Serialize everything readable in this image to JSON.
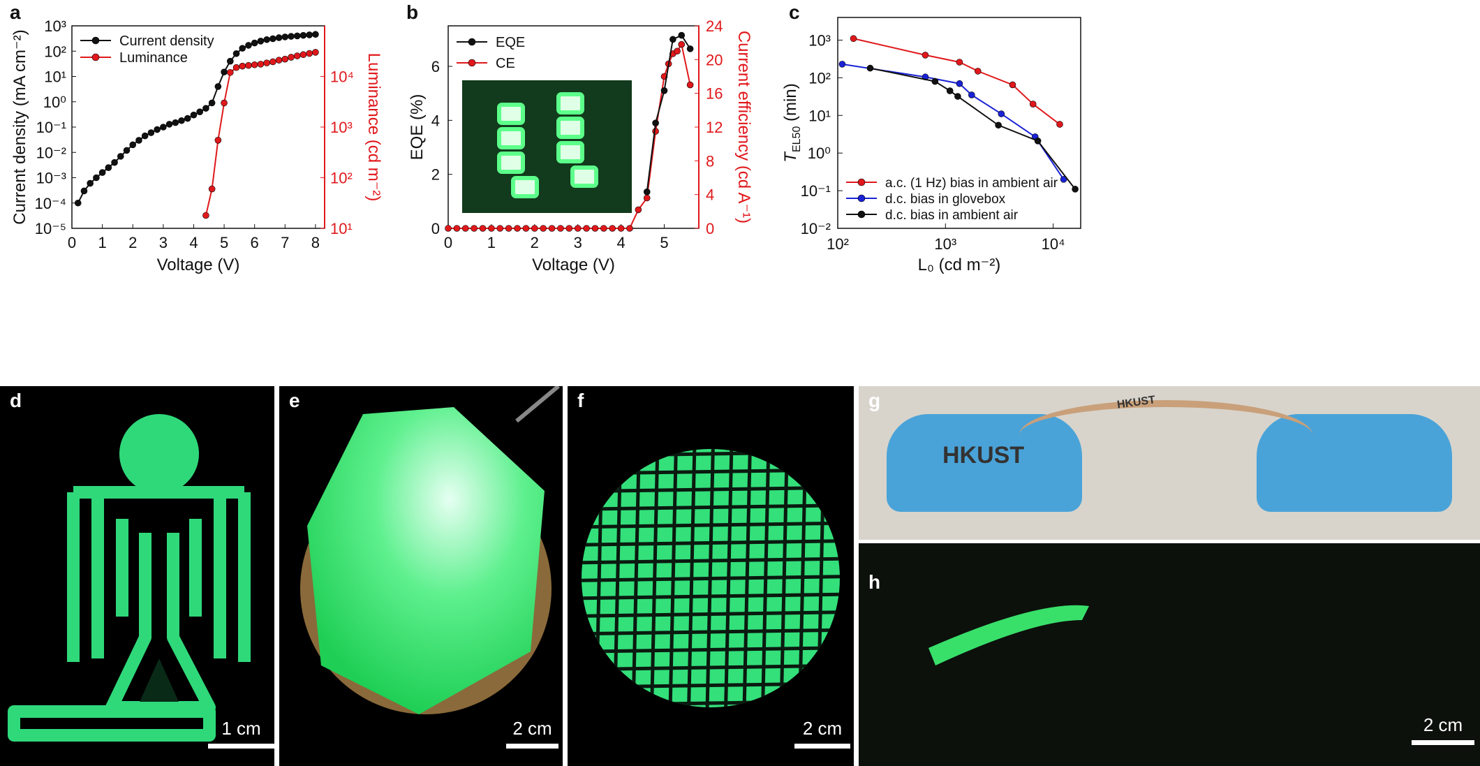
{
  "panel_labels": {
    "a": "a",
    "b": "b",
    "c": "c",
    "d": "d",
    "e": "e",
    "f": "f",
    "g": "g",
    "h": "h"
  },
  "colors": {
    "black": "#111111",
    "red": "#e0181b",
    "blue": "#1a22d6",
    "green": "#2fe07a"
  },
  "chart_data": [
    {
      "id": "a",
      "type": "line",
      "xlabel": "Voltage (V)",
      "ylabel": "Current density (mA cm⁻²)",
      "y2label": "Luminance (cd m⁻²)",
      "xlim": [
        0,
        8.3
      ],
      "ylim": [
        1e-05,
        1000.0
      ],
      "y2lim": [
        10.0,
        100000.0
      ],
      "yscale": "log",
      "y2scale": "log",
      "xticks": [
        "0",
        "1",
        "2",
        "3",
        "4",
        "5",
        "6",
        "7",
        "8"
      ],
      "yticks": [
        "10⁻⁵",
        "10⁻⁴",
        "10⁻³",
        "10⁻²",
        "10⁻¹",
        "10⁰",
        "10¹",
        "10²",
        "10³"
      ],
      "y2ticks": [
        "10¹",
        "10²",
        "10³",
        "10⁴"
      ],
      "legend_position": "top-left",
      "series": [
        {
          "name": "Current density",
          "axis": "left",
          "color": "#111111",
          "x": [
            0.2,
            0.4,
            0.6,
            0.8,
            1.0,
            1.2,
            1.4,
            1.6,
            1.8,
            2.0,
            2.2,
            2.4,
            2.6,
            2.8,
            3.0,
            3.2,
            3.4,
            3.6,
            3.8,
            4.0,
            4.2,
            4.4,
            4.6,
            4.8,
            5.0,
            5.2,
            5.4,
            5.6,
            5.8,
            6.0,
            6.2,
            6.4,
            6.6,
            6.8,
            7.0,
            7.2,
            7.4,
            7.6,
            7.8,
            8.0
          ],
          "y": [
            0.0001,
            0.0003,
            0.0006,
            0.001,
            0.0016,
            0.0025,
            0.004,
            0.007,
            0.012,
            0.02,
            0.03,
            0.045,
            0.06,
            0.08,
            0.1,
            0.13,
            0.15,
            0.18,
            0.22,
            0.3,
            0.4,
            0.55,
            0.9,
            4.0,
            15,
            40,
            80,
            130,
            170,
            210,
            250,
            285,
            310,
            340,
            365,
            385,
            400,
            420,
            440,
            460
          ]
        },
        {
          "name": "Luminance",
          "axis": "right",
          "color": "#e0181b",
          "x": [
            4.4,
            4.6,
            4.8,
            5.0,
            5.2,
            5.4,
            5.6,
            5.8,
            6.0,
            6.2,
            6.4,
            6.6,
            6.8,
            7.0,
            7.2,
            7.4,
            7.6,
            7.8,
            8.0
          ],
          "y": [
            18,
            60,
            550,
            3000,
            12000,
            15000,
            16000,
            16500,
            17000,
            17500,
            18500,
            19500,
            21000,
            22000,
            24000,
            25500,
            27000,
            28500,
            30000
          ]
        }
      ]
    },
    {
      "id": "b",
      "type": "line",
      "xlabel": "Voltage (V)",
      "ylabel": "EQE (%)",
      "y2label": "Current efficiency (cd A⁻¹)",
      "xlim": [
        0,
        5.8
      ],
      "ylim": [
        0,
        7.5
      ],
      "y2lim": [
        0,
        24
      ],
      "xticks": [
        "0",
        "1",
        "2",
        "3",
        "4",
        "5"
      ],
      "yticks": [
        "0",
        "2",
        "4",
        "6"
      ],
      "y2ticks": [
        "0",
        "4",
        "8",
        "12",
        "16",
        "20",
        "24"
      ],
      "legend_position": "top-left",
      "series": [
        {
          "name": "EQE",
          "axis": "left",
          "color": "#111111",
          "x": [
            4.6,
            4.8,
            5.0,
            5.2,
            5.4,
            5.6
          ],
          "y": [
            1.35,
            3.9,
            5.1,
            7.0,
            7.15,
            6.65
          ]
        },
        {
          "name": "CE",
          "axis": "right",
          "color": "#e0181b",
          "x": [
            0,
            0.2,
            0.4,
            0.6,
            0.8,
            1.0,
            1.2,
            1.4,
            1.6,
            1.8,
            2.0,
            2.2,
            2.4,
            2.6,
            2.8,
            3.0,
            3.2,
            3.4,
            3.6,
            3.8,
            4.0,
            4.2,
            4.4,
            4.6,
            4.8,
            5.0,
            5.1,
            5.2,
            5.3,
            5.4,
            5.6
          ],
          "y": [
            0,
            0,
            0,
            0,
            0,
            0,
            0,
            0,
            0,
            0,
            0,
            0,
            0,
            0,
            0,
            0,
            0,
            0,
            0,
            0,
            0,
            0,
            2.2,
            3.6,
            11.5,
            18,
            19.5,
            20.7,
            21,
            21.8,
            17
          ]
        }
      ]
    },
    {
      "id": "c",
      "type": "line",
      "xlabel": "L₀ (cd m⁻²)",
      "ylabel": "T",
      "ylabel_sub": "EL50",
      "ylabel_suffix": " (min)",
      "xlim": [
        100,
        18000
      ],
      "ylim": [
        0.01,
        4000
      ],
      "xscale": "log",
      "yscale": "log",
      "xticks": [
        "10²",
        "10³",
        "10⁴"
      ],
      "yticks": [
        "10⁻²",
        "10⁻¹",
        "10⁰",
        "10¹",
        "10²",
        "10³"
      ],
      "legend_position": "bottom-left",
      "series": [
        {
          "name": "a.c. (1 Hz) bias in ambient air",
          "color": "#e0181b",
          "x": [
            140,
            650,
            1350,
            2000,
            4200,
            6500,
            11500
          ],
          "y": [
            1100,
            400,
            260,
            150,
            65,
            20,
            5.8
          ]
        },
        {
          "name": "d.c. bias in glovebox",
          "color": "#1a22d6",
          "x": [
            110,
            650,
            1350,
            1750,
            3300,
            6800,
            12500
          ],
          "y": [
            230,
            105,
            70,
            35,
            11,
            2.7,
            0.2
          ]
        },
        {
          "name": "d.c. bias in ambient air",
          "color": "#111111",
          "x": [
            200,
            800,
            1100,
            1300,
            3100,
            7200,
            16000
          ],
          "y": [
            180,
            80,
            45,
            32,
            5.5,
            2.1,
            0.11
          ]
        }
      ]
    }
  ],
  "scale_bars": {
    "d": "1 cm",
    "e": "2 cm",
    "f": "2 cm",
    "h": "2 cm"
  },
  "photo_g_text": {
    "brand": "HKUST",
    "banner": "HKUST"
  }
}
